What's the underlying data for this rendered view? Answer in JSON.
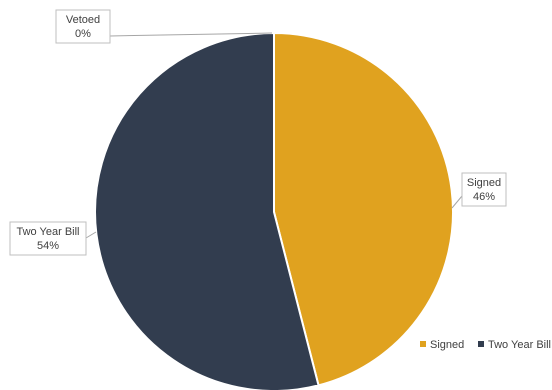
{
  "chart_data": {
    "type": "pie",
    "title": "",
    "labels": [
      "Signed",
      "Two Year Bill",
      "Vetoed"
    ],
    "values": [
      46,
      54,
      0
    ],
    "value_labels": [
      "46%",
      "54%",
      "0%"
    ],
    "colors": [
      "#E0A21F",
      "#323D4F",
      "#A5A5A5"
    ],
    "start_angle_deg": 0,
    "direction": "clockwise",
    "data_labels": "callout boxes with leader lines",
    "legend": {
      "position": "bottom-right",
      "entries": [
        {
          "label": "Signed",
          "color": "#E0A21F"
        },
        {
          "label": "Two Year Bill",
          "color": "#323D4F"
        }
      ]
    }
  }
}
